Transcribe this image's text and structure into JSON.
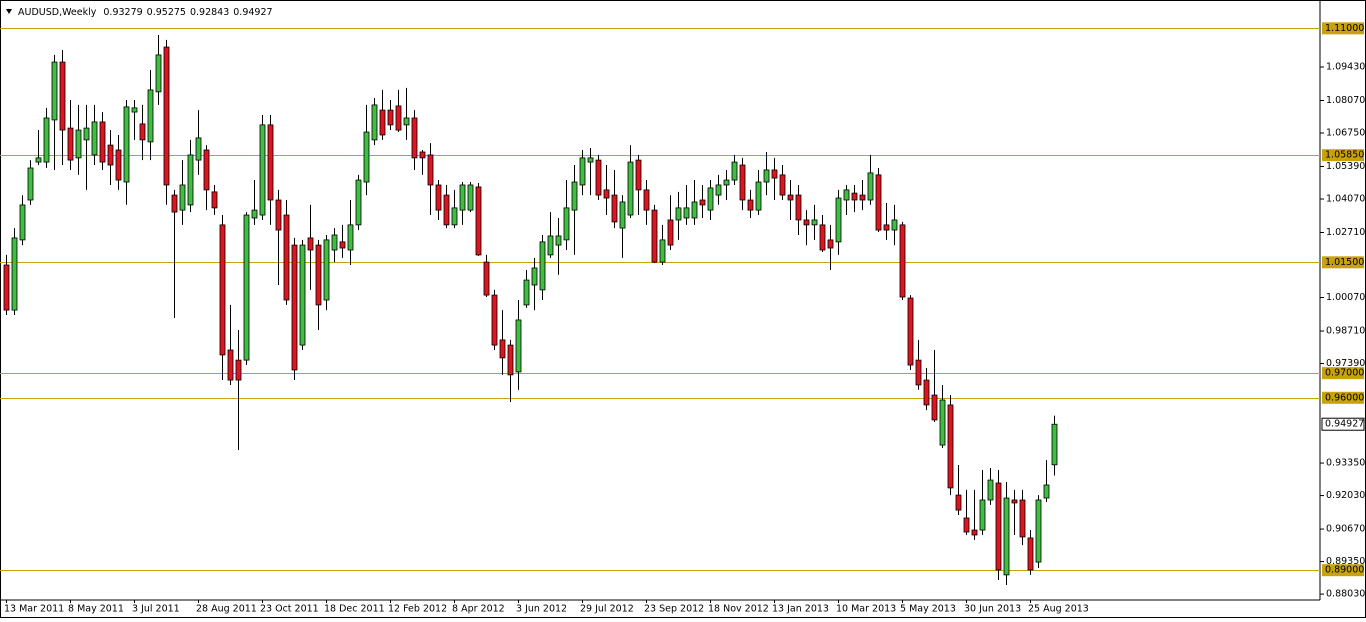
{
  "chart_data": {
    "type": "candlestick",
    "title": "AUDUSD,Weekly",
    "categories": [
      "13 Mar 2011",
      null,
      null,
      null,
      null,
      null,
      null,
      null,
      "8 May 2011",
      null,
      null,
      null,
      null,
      null,
      null,
      null,
      "3 Jul 2011",
      null,
      null,
      null,
      null,
      null,
      null,
      null,
      "28 Aug 2011",
      null,
      null,
      null,
      null,
      null,
      null,
      null,
      "23 Oct 2011",
      null,
      null,
      null,
      null,
      null,
      null,
      null,
      "18 Dec 2011",
      null,
      null,
      null,
      null,
      null,
      null,
      null,
      "12 Feb 2012",
      null,
      null,
      null,
      null,
      null,
      null,
      null,
      "8 Apr 2012",
      null,
      null,
      null,
      null,
      null,
      null,
      null,
      "3 Jun 2012",
      null,
      null,
      null,
      null,
      null,
      null,
      null,
      "29 Jul 2012",
      null,
      null,
      null,
      null,
      null,
      null,
      null,
      "23 Sep 2012",
      null,
      null,
      null,
      null,
      null,
      null,
      null,
      "18 Nov 2012",
      null,
      null,
      null,
      null,
      null,
      null,
      null,
      "13 Jan 2013",
      null,
      null,
      null,
      null,
      null,
      null,
      null,
      "10 Mar 2013",
      null,
      null,
      null,
      null,
      null,
      null,
      null,
      "5 May 2013",
      null,
      null,
      null,
      null,
      null,
      null,
      null,
      "30 Jun 2013",
      null,
      null,
      null,
      null,
      null,
      null,
      null,
      "25 Aug 2013",
      null,
      null,
      null
    ],
    "open": [
      1.0139,
      0.9956,
      1.0241,
      1.0403,
      1.0557,
      1.0557,
      1.0728,
      1.0963,
      1.0695,
      1.0574,
      1.0647,
      1.0586,
      1.072,
      1.0626,
      1.0606,
      1.0476,
      1.076,
      1.0712,
      1.0639,
      1.0842,
      1.1024,
      1.0423,
      1.0362,
      1.0383,
      1.0565,
      1.0606,
      1.0436,
      1.0302,
      0.9794,
      0.9753,
      0.9753,
      1.033,
      1.0342,
      1.0708,
      1.0403,
      1.0342,
      1.022,
      0.9814,
      1.0249,
      1.022,
      0.9997,
      1.02,
      1.0233,
      1.02,
      1.0302,
      1.0476,
      1.0647,
      1.0768,
      1.0768,
      1.0785,
      1.0708,
      1.0736,
      1.0598,
      1.0586,
      1.0464,
      1.0423,
      1.0302,
      1.0362,
      1.0362,
      1.0456,
      1.0151,
      1.0017,
      0.9835,
      0.9814,
      0.9705,
      0.9977,
      1.0058,
      1.0038,
      1.018,
      1.022,
      1.0241,
      1.0362,
      1.0464,
      1.0557,
      1.0565,
      1.0444,
      1.0423,
      1.0289,
      1.0342,
      1.0565,
      1.0444,
      1.0362,
      1.0151,
      1.0322,
      1.0322,
      1.033,
      1.033,
      1.0403,
      1.0362,
      1.0423,
      1.0464,
      1.0484,
      1.0545,
      1.0403,
      1.0362,
      1.0476,
      1.0525,
      1.0505,
      1.0423,
      1.0423,
      1.0322,
      1.0302,
      1.0302,
      1.0241,
      1.0233,
      1.0403,
      1.0431,
      1.0423,
      1.0403,
      1.0505,
      1.0302,
      1.0281,
      1.0302,
      1.0005,
      0.9753,
      0.9672,
      0.9611,
      0.9408,
      0.9571,
      0.9205,
      0.9112,
      0.9063,
      0.9063,
      0.9185,
      0.9254,
      0.8881,
      0.9185,
      0.9185,
      0.9031,
      0.8933,
      0.9193,
      0.93279
    ],
    "high": [
      1.018,
      1.0289,
      1.0423,
      1.0565,
      1.0687,
      1.0777,
      1.0992,
      1.1012,
      1.0809,
      1.0789,
      1.0789,
      1.0789,
      1.076,
      1.0687,
      1.0667,
      1.0809,
      1.0809,
      1.0789,
      1.0931,
      1.1073,
      1.1053,
      1.0444,
      1.0565,
      1.0647,
      1.0768,
      1.0626,
      1.0464,
      1.0342,
      0.9977,
      0.9875,
      1.0354,
      1.0484,
      1.0748,
      1.0748,
      1.0444,
      1.0403,
      1.0249,
      1.0241,
      1.0383,
      1.0241,
      1.0261,
      1.0289,
      1.0302,
      1.0403,
      1.0505,
      1.0789,
      1.0817,
      1.085,
      1.0809,
      1.085,
      1.0858,
      1.0768,
      1.0606,
      1.0634,
      1.0484,
      1.0464,
      1.0444,
      1.0476,
      1.0476,
      1.0472,
      1.018,
      1.0038,
      0.9956,
      0.9835,
      0.9997,
      1.0119,
      1.0168,
      1.0261,
      1.0354,
      1.033,
      1.0484,
      1.0545,
      1.0606,
      1.0614,
      1.0586,
      1.0545,
      1.0525,
      1.0423,
      1.0626,
      1.0586,
      1.0484,
      1.0383,
      1.0302,
      1.0423,
      1.0436,
      1.0464,
      1.0484,
      1.0464,
      1.0484,
      1.0505,
      1.0525,
      1.0586,
      1.0574,
      1.0444,
      1.0525,
      1.0598,
      1.0574,
      1.0545,
      1.0484,
      1.0464,
      1.0362,
      1.0383,
      1.0342,
      1.0302,
      1.0444,
      1.0464,
      1.0464,
      1.0484,
      1.0586,
      1.0533,
      1.0391,
      1.0383,
      1.0314,
      1.0017,
      0.9835,
      0.9721,
      0.9794,
      0.9652,
      0.9611,
      0.9327,
      0.9226,
      0.9226,
      0.9307,
      0.9315,
      0.9307,
      0.9258,
      0.9226,
      0.9226,
      0.9063,
      0.9205,
      0.9347,
      0.95275
    ],
    "low": [
      0.9936,
      0.9936,
      1.022,
      1.0383,
      1.0545,
      1.0533,
      1.0525,
      1.0545,
      1.0525,
      1.0505,
      1.0444,
      1.0545,
      1.0525,
      1.0464,
      1.0444,
      1.0383,
      1.0647,
      1.0565,
      1.0565,
      1.0789,
      1.0383,
      0.9924,
      1.0302,
      1.0354,
      1.0505,
      1.0362,
      1.0342,
      0.9672,
      0.9652,
      0.9388,
      0.9733,
      1.0302,
      1.0322,
      1.0302,
      1.0058,
      0.9977,
      0.9672,
      0.9794,
      1.0038,
      0.9875,
      0.9956,
      1.0151,
      1.0168,
      1.0139,
      1.0281,
      1.0423,
      1.0626,
      1.0647,
      1.0687,
      1.0679,
      1.0647,
      1.0525,
      1.0505,
      1.0342,
      1.0322,
      1.0289,
      1.0289,
      1.0302,
      1.0354,
      1.0176,
      1.0009,
      0.9794,
      0.9693,
      0.9583,
      0.9632,
      0.9965,
      0.9956,
      0.9997,
      1.0168,
      1.0099,
      1.02,
      1.018,
      1.0423,
      1.0423,
      1.0403,
      1.0342,
      1.0289,
      1.0168,
      1.033,
      1.0342,
      1.0302,
      1.0147,
      1.0139,
      1.02,
      1.0241,
      1.0302,
      1.0302,
      1.033,
      1.0322,
      1.0383,
      1.0403,
      1.0464,
      1.0362,
      1.033,
      1.0342,
      1.0423,
      1.0403,
      1.0403,
      1.0322,
      1.0261,
      1.022,
      1.0241,
      1.0192,
      1.0119,
      1.018,
      1.0342,
      1.0354,
      1.0362,
      1.0383,
      1.0273,
      1.0241,
      1.022,
      0.9997,
      0.9713,
      0.9632,
      0.955,
      0.9502,
      0.9396,
      0.9205,
      0.9124,
      0.9043,
      0.9023,
      0.9043,
      0.9165,
      0.886,
      0.884,
      0.9043,
      0.9002,
      0.8881,
      0.8909,
      0.9177,
      0.92843
    ],
    "close": [
      0.9956,
      1.0249,
      1.0383,
      1.0533,
      1.0574,
      1.0736,
      1.0963,
      1.0687,
      1.0565,
      1.0687,
      1.0695,
      1.072,
      1.0557,
      1.0545,
      1.0484,
      1.0781,
      1.0777,
      1.0647,
      1.085,
      1.0992,
      1.0464,
      1.0354,
      1.0464,
      1.0586,
      1.0655,
      1.0444,
      1.0371,
      0.9774,
      0.9672,
      0.9672,
      1.0342,
      1.0362,
      1.0708,
      1.0403,
      1.0281,
      0.9997,
      0.9713,
      1.022,
      1.02,
      0.9977,
      1.0241,
      1.0261,
      1.0208,
      1.0302,
      1.0484,
      1.0679,
      1.0789,
      1.0667,
      1.0708,
      1.0687,
      1.0736,
      1.0574,
      1.0574,
      1.0464,
      1.0362,
      1.0302,
      1.0371,
      1.0464,
      1.0464,
      1.018,
      1.0017,
      0.9814,
      0.9762,
      0.9693,
      0.9916,
      1.0078,
      1.0127,
      1.0233,
      1.0257,
      1.0257,
      1.0371,
      1.0476,
      1.0574,
      1.0574,
      1.0423,
      1.0411,
      1.0314,
      1.0395,
      1.0557,
      1.0444,
      1.0362,
      1.0151,
      1.0241,
      1.022,
      1.0371,
      1.0371,
      1.0395,
      1.0383,
      1.0452,
      1.0464,
      1.0484,
      1.0557,
      1.0403,
      1.0362,
      1.0476,
      1.0525,
      1.0492,
      1.0423,
      1.0403,
      1.0322,
      1.0302,
      1.0322,
      1.02,
      1.0208,
      1.0411,
      1.0444,
      1.0403,
      1.0403,
      1.0513,
      1.0281,
      1.0281,
      1.0322,
      1.0009,
      0.9733,
      0.9652,
      0.9571,
      0.951,
      0.9591,
      0.9234,
      0.9144,
      0.9055,
      0.9043,
      0.9185,
      0.9266,
      0.8901,
      0.9193,
      0.9173,
      0.9035,
      0.8901,
      0.9185,
      0.9246,
      0.94927
    ],
    "up_color": "#3fbf3f",
    "down_color": "#e0141e",
    "ylim": [
      0.8779,
      1.1215
    ],
    "yticks": [
      {
        "value": 1.0943,
        "label": "1.09430"
      },
      {
        "value": 1.0807,
        "label": "1.08070"
      },
      {
        "value": 1.0675,
        "label": "1.06750"
      },
      {
        "value": 1.0539,
        "label": "1.05390"
      },
      {
        "value": 1.0407,
        "label": "1.04070"
      },
      {
        "value": 1.0271,
        "label": "1.02710"
      },
      {
        "value": 1.0007,
        "label": "1.00070"
      },
      {
        "value": 0.9871,
        "label": "0.98710"
      },
      {
        "value": 0.9739,
        "label": "0.97390"
      },
      {
        "value": 0.9335,
        "label": "0.93350"
      },
      {
        "value": 0.9203,
        "label": "0.92030"
      },
      {
        "value": 0.9067,
        "label": "0.90670"
      },
      {
        "value": 0.8935,
        "label": "0.89350"
      },
      {
        "value": 0.8803,
        "label": "0.88030"
      }
    ],
    "hlines": [
      {
        "value": 1.11,
        "label": "1.11000"
      },
      {
        "value": 1.0585,
        "label": "1.05850"
      },
      {
        "value": 1.015,
        "label": "1.01500"
      },
      {
        "value": 0.97,
        "label": "0.97000"
      },
      {
        "value": 0.96,
        "label": "0.96000"
      },
      {
        "value": 0.89,
        "label": "0.89000"
      }
    ],
    "hline_color": "#c8a20a",
    "grid": false
  }
}
